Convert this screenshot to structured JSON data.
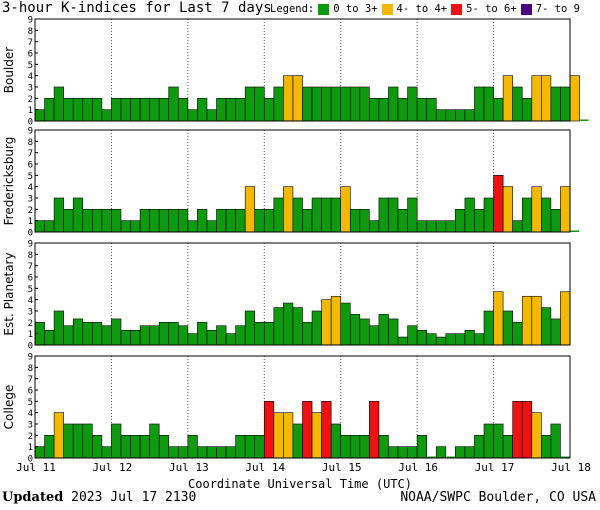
{
  "title": "3-hour K-indices for Last 7 days",
  "legend": {
    "label": "Legend:",
    "items": [
      {
        "label": "0 to 3+",
        "color": "#0e9a0e"
      },
      {
        "label": "4- to 4+",
        "color": "#f5b800"
      },
      {
        "label": "5- to 6+",
        "color": "#ee1111"
      },
      {
        "label": "7- to 9",
        "color": "#4b0082"
      }
    ]
  },
  "footer": {
    "updated_label": "Updated",
    "updated_value": "2023 Jul 17 2130",
    "credit": "NOAA/SWPC Boulder, CO USA"
  },
  "chart_data": {
    "type": "bar",
    "xlabel": "Coordinate Universal Time (UTC)",
    "x_ticks": [
      "Jul 11",
      "Jul 12",
      "Jul 13",
      "Jul 14",
      "Jul 15",
      "Jul 16",
      "Jul 17",
      "Jul 18"
    ],
    "ylim": [
      0,
      9
    ],
    "y_ticks": [
      0,
      1,
      2,
      3,
      4,
      5,
      6,
      7,
      8,
      9
    ],
    "bins_per_day": 8,
    "grid": "dotted vertical at day boundaries",
    "color_rules": {
      "lt4": "#0e9a0e",
      "4to5": "#f5b800",
      "5to7": "#ee1111",
      "ge7": "#4b0082"
    },
    "panels": [
      {
        "name": "Boulder",
        "values": [
          1,
          2,
          3,
          2,
          2,
          2,
          2,
          1,
          2,
          2,
          2,
          2,
          2,
          2,
          3,
          2,
          1,
          2,
          1,
          2,
          2,
          2,
          3,
          3,
          2,
          3,
          4,
          4,
          3,
          3,
          3,
          3,
          3,
          3,
          3,
          2,
          2,
          3,
          2,
          3,
          2,
          2,
          1,
          1,
          1,
          1,
          3,
          3,
          2,
          4,
          3,
          2,
          4,
          4,
          3,
          3,
          4,
          0
        ]
      },
      {
        "name": "Fredericksburg",
        "values": [
          1,
          1,
          3,
          2,
          3,
          2,
          2,
          2,
          2,
          1,
          1,
          2,
          2,
          2,
          2,
          2,
          1,
          2,
          1,
          2,
          2,
          2,
          4,
          2,
          2,
          3,
          4,
          3,
          2,
          3,
          3,
          3,
          4,
          2,
          2,
          1,
          3,
          3,
          2,
          3,
          1,
          1,
          1,
          1,
          2,
          3,
          2,
          3,
          5,
          4,
          1,
          3,
          4,
          3,
          2,
          4,
          0
        ]
      },
      {
        "name": "Est. Planetary",
        "values": [
          2,
          1.3,
          3,
          1.7,
          2.3,
          2,
          2,
          1.7,
          2.3,
          1.3,
          1.3,
          1.7,
          1.7,
          2,
          2,
          1.7,
          1,
          2,
          1.3,
          1.7,
          1,
          1.7,
          3,
          2,
          2,
          3.3,
          3.7,
          3.3,
          2,
          3,
          4,
          4.3,
          3.7,
          2.7,
          2.3,
          1.7,
          2.7,
          2.3,
          0.7,
          1.7,
          1.3,
          1,
          0.7,
          1,
          1,
          1.3,
          1,
          3,
          4.7,
          3,
          2,
          4.3,
          4.3,
          3.3,
          2.3,
          4.7
        ]
      },
      {
        "name": "College",
        "values": [
          1,
          2,
          4,
          3,
          3,
          3,
          2,
          1,
          3,
          2,
          2,
          2,
          3,
          2,
          1,
          1,
          2,
          1,
          1,
          1,
          1,
          2,
          2,
          2,
          5,
          4,
          4,
          3,
          5,
          4,
          5,
          3,
          2,
          2,
          2,
          5,
          2,
          1,
          1,
          1,
          2,
          0,
          1,
          0,
          1,
          1,
          2,
          3,
          3,
          2,
          5,
          5,
          4,
          2,
          3,
          0
        ]
      }
    ]
  }
}
